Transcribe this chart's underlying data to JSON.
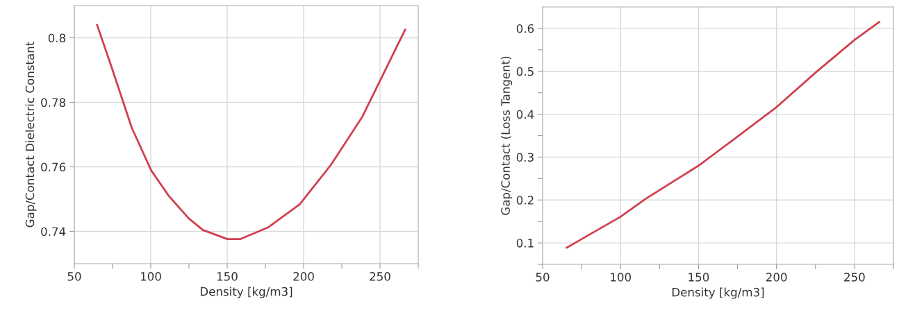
{
  "chart_data": [
    {
      "type": "line",
      "xlabel": "Density [kg/m3]",
      "ylabel": "Gap/Contact Dielectric Constant",
      "xlim": [
        50,
        275
      ],
      "ylim": [
        0.73,
        0.81
      ],
      "xticks": [
        50,
        {
          "value": 75,
          "label": null
        },
        100,
        {
          "value": 125,
          "label": null
        },
        150,
        {
          "value": 175,
          "label": null
        },
        200,
        {
          "value": 225,
          "label": null
        },
        250,
        {
          "value": 275,
          "label": null
        }
      ],
      "yticks": [
        0.74,
        0.76,
        0.78,
        0.8
      ],
      "grid": true,
      "series": [
        {
          "color": "#d0404f",
          "x": [
            64.9,
            74.6,
            87.6,
            100.3,
            111.8,
            124.9,
            134.2,
            150.2,
            158.4,
            177,
            197.5,
            218,
            238.5,
            266.4
          ],
          "values": [
            0.804,
            0.7906,
            0.7721,
            0.7589,
            0.751,
            0.744,
            0.7404,
            0.7376,
            0.7376,
            0.7413,
            0.7484,
            0.7607,
            0.7756,
            0.8025
          ]
        }
      ]
    },
    {
      "type": "line",
      "xlabel": "Density [kg/m3]",
      "ylabel": "Gap/Contact (Loss Tangent)",
      "xlim": [
        50,
        275
      ],
      "ylim": [
        0.05,
        0.65
      ],
      "xticks": [
        50,
        {
          "value": 75,
          "label": null
        },
        100,
        {
          "value": 125,
          "label": null
        },
        150,
        {
          "value": 175,
          "label": null
        },
        200,
        {
          "value": 225,
          "label": null
        },
        250,
        {
          "value": 275,
          "label": null
        }
      ],
      "yticks": [
        {
          "value": 0.05,
          "label": null
        },
        0.1,
        {
          "value": 0.15,
          "label": null
        },
        0.2,
        {
          "value": 0.25,
          "label": null
        },
        0.3,
        {
          "value": 0.35,
          "label": null
        },
        0.4,
        {
          "value": 0.45,
          "label": null
        },
        0.5,
        {
          "value": 0.55,
          "label": null
        },
        0.6
      ],
      "grid": true,
      "series": [
        {
          "color": "#d0404f",
          "x": [
            65.5,
            100,
            116.2,
            150,
            171,
            200.2,
            225.7,
            250,
            265.9
          ],
          "values": [
            0.089,
            0.161,
            0.203,
            0.28,
            0.337,
            0.417,
            0.499,
            0.573,
            0.615
          ]
        }
      ]
    }
  ]
}
